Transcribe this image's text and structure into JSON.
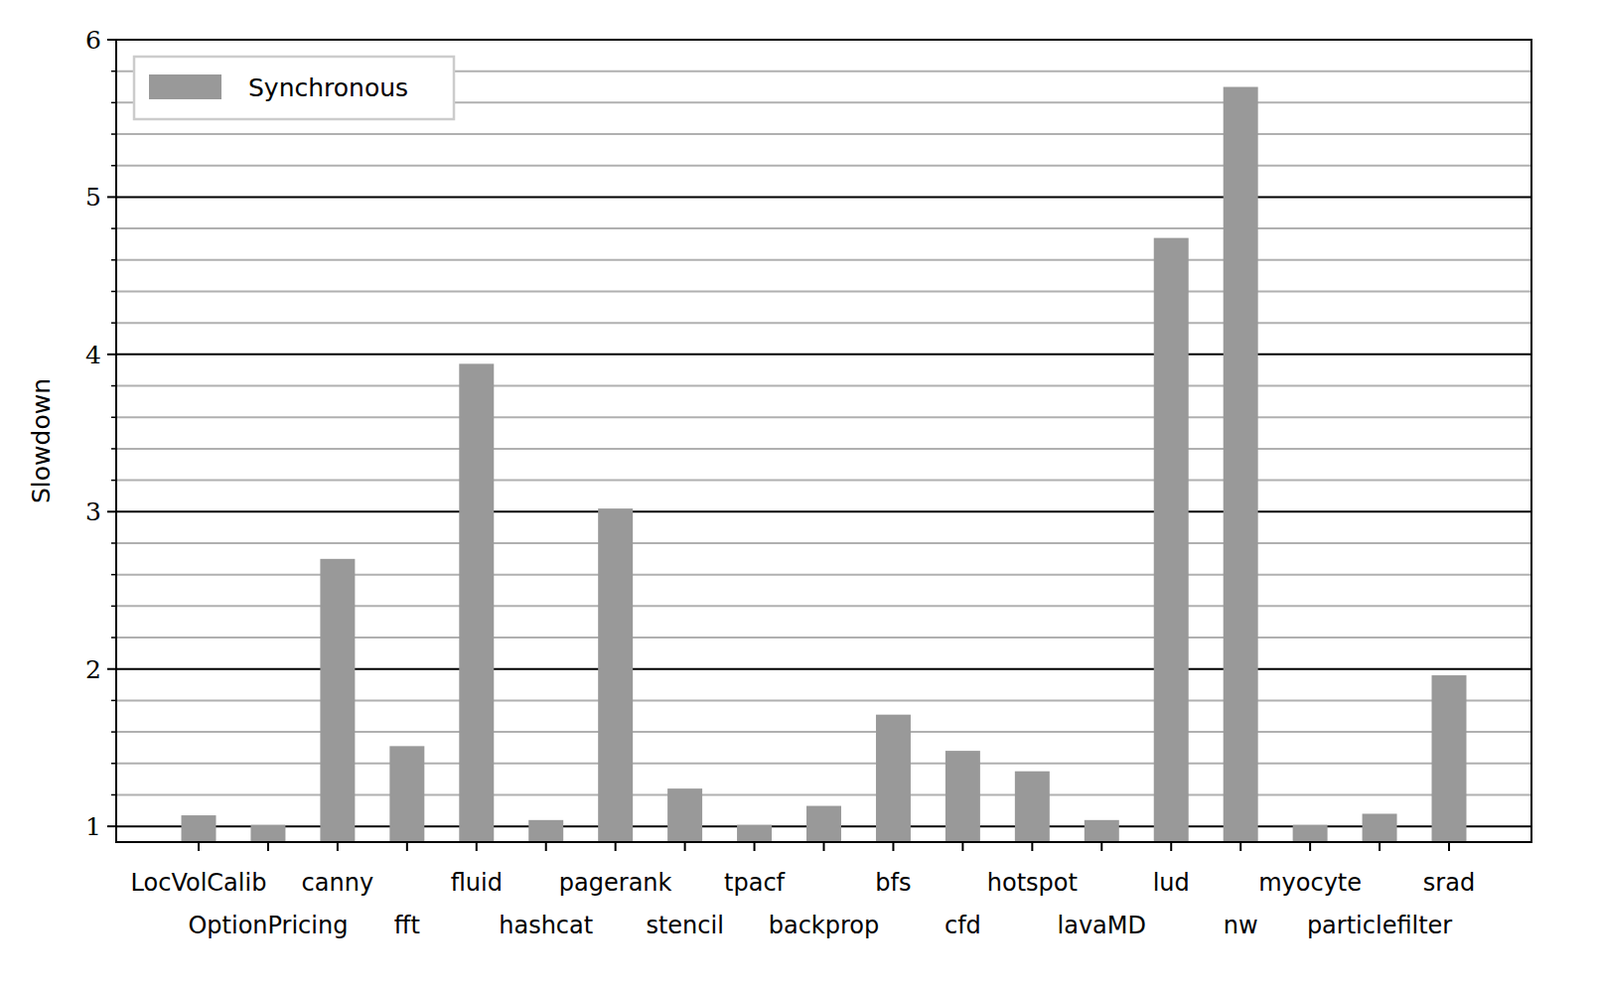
{
  "chart_data": {
    "type": "bar",
    "y_label": "Slowdown",
    "categories": [
      "LocVolCalib",
      "OptionPricing",
      "canny",
      "fft",
      "fluid",
      "hashcat",
      "pagerank",
      "stencil",
      "tpacf",
      "backprop",
      "bfs",
      "cfd",
      "hotspot",
      "lavaMD",
      "lud",
      "nw",
      "myocyte",
      "particlefilter",
      "srad"
    ],
    "series": [
      {
        "name": "Synchronous",
        "color": "#999999",
        "values": [
          1.07,
          1.01,
          2.7,
          1.51,
          3.94,
          1.04,
          3.02,
          1.24,
          1.01,
          1.13,
          1.71,
          1.48,
          1.35,
          1.04,
          4.74,
          5.7,
          1.01,
          1.08,
          1.96
        ]
      }
    ],
    "ylim": [
      0.9,
      6
    ],
    "yticks": [
      1,
      2,
      3,
      4,
      5,
      6
    ],
    "grid": true,
    "legend": "upper left"
  }
}
